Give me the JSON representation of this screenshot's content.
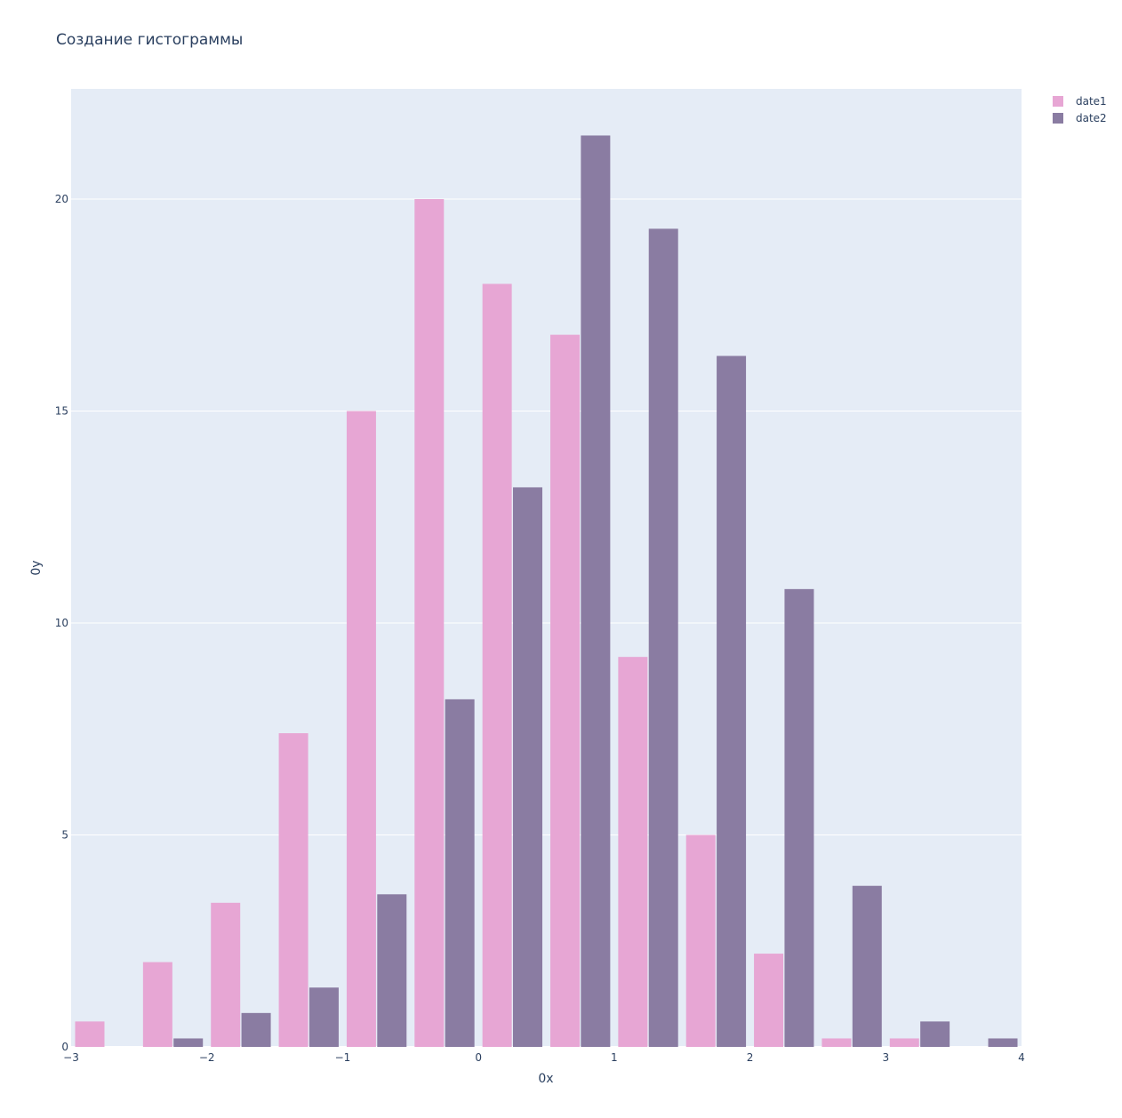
{
  "chart_data": {
    "type": "bar",
    "title": "Создание гистограммы",
    "xlabel": "0x",
    "ylabel": "0y",
    "xlim": [
      -3,
      4
    ],
    "ylim": [
      0,
      22.6
    ],
    "x_ticks": [
      {
        "value": -3,
        "label": "−3"
      },
      {
        "value": -2,
        "label": "−2"
      },
      {
        "value": -1,
        "label": "−1"
      },
      {
        "value": 0,
        "label": "0"
      },
      {
        "value": 1,
        "label": "1"
      },
      {
        "value": 2,
        "label": "2"
      },
      {
        "value": 3,
        "label": "3"
      },
      {
        "value": 4,
        "label": "4"
      }
    ],
    "y_ticks": [
      {
        "value": 0,
        "label": "0"
      },
      {
        "value": 5,
        "label": "5"
      },
      {
        "value": 10,
        "label": "10"
      },
      {
        "value": 15,
        "label": "15"
      },
      {
        "value": 20,
        "label": "20"
      }
    ],
    "grid": true,
    "legend_position": "top-right",
    "bin_width": 0.5,
    "bins": [
      {
        "start": -3.0,
        "end": -2.5
      },
      {
        "start": -2.5,
        "end": -2.0
      },
      {
        "start": -2.0,
        "end": -1.5
      },
      {
        "start": -1.5,
        "end": -1.0
      },
      {
        "start": -1.0,
        "end": -0.5
      },
      {
        "start": -0.5,
        "end": 0.0
      },
      {
        "start": 0.0,
        "end": 0.5
      },
      {
        "start": 0.5,
        "end": 1.0
      },
      {
        "start": 1.0,
        "end": 1.5
      },
      {
        "start": 1.5,
        "end": 2.0
      },
      {
        "start": 2.0,
        "end": 2.5
      },
      {
        "start": 2.5,
        "end": 3.0
      },
      {
        "start": 3.0,
        "end": 3.5
      },
      {
        "start": 3.5,
        "end": 4.0
      }
    ],
    "series": [
      {
        "name": "date1",
        "color": "#e7a6d4",
        "values": [
          0.6,
          2.0,
          3.4,
          7.4,
          15.0,
          20.0,
          18.0,
          16.8,
          9.2,
          5.0,
          2.2,
          0.2,
          0.2,
          0
        ]
      },
      {
        "name": "date2",
        "color": "#8a7ca2",
        "values": [
          0,
          0.2,
          0.8,
          1.4,
          3.6,
          8.2,
          13.2,
          21.5,
          19.3,
          16.3,
          10.8,
          3.8,
          0.6,
          0.2
        ]
      }
    ],
    "plot_background": "#e5ecf6",
    "grid_color": "#ffffff",
    "text_color": "#2a3f5f"
  }
}
